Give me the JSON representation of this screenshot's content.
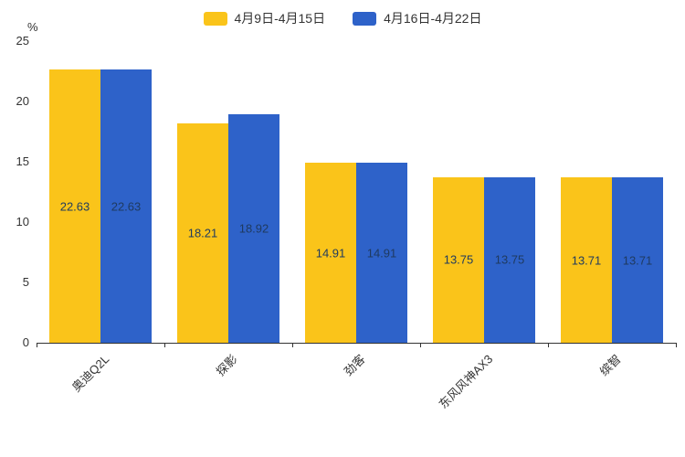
{
  "chart_data": {
    "type": "bar",
    "unit": "%",
    "categories": [
      "奥迪Q2L",
      "探影",
      "劲客",
      "东风风神AX3",
      "缤智"
    ],
    "series": [
      {
        "name": "4月9日-4月15日",
        "color": "#FAC41A",
        "values": [
          22.63,
          18.21,
          14.91,
          13.75,
          13.71
        ]
      },
      {
        "name": "4月16日-4月22日",
        "color": "#2E62C9",
        "values": [
          22.63,
          18.92,
          14.91,
          13.75,
          13.71
        ]
      }
    ],
    "ylim": [
      0,
      25
    ],
    "yticks": [
      0,
      5,
      10,
      15,
      20,
      25
    ],
    "grid": false,
    "legend_position": "top",
    "data_labels": true,
    "label_color": "#1F3A5F"
  }
}
